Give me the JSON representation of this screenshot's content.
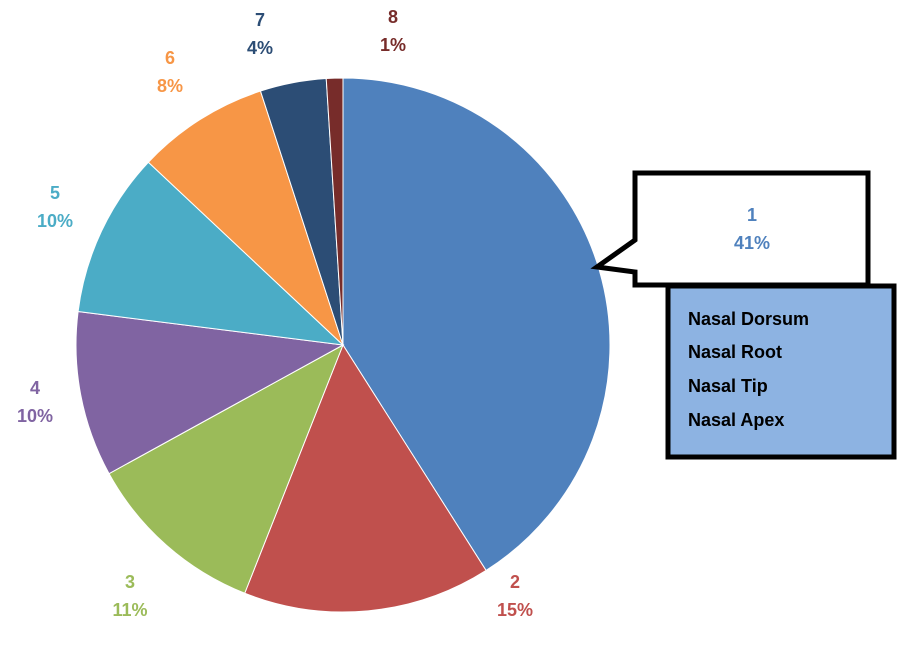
{
  "chart_data": {
    "type": "pie",
    "categories": [
      "1",
      "2",
      "3",
      "4",
      "5",
      "6",
      "7",
      "8"
    ],
    "values": [
      41,
      15,
      11,
      10,
      10,
      8,
      4,
      1
    ],
    "value_labels": [
      "41%",
      "15%",
      "11%",
      "10%",
      "10%",
      "8%",
      "4%",
      "1%"
    ],
    "colors": [
      "#4f81bd",
      "#c0504d",
      "#9bbb59",
      "#8064a2",
      "#4bacc6",
      "#f79646",
      "#2c4d75",
      "#772c2a"
    ],
    "annotation": {
      "lines": [
        "Nasal Dorsum",
        "Nasal Root",
        "Nasal Tip",
        "Nasal Apex"
      ]
    }
  }
}
